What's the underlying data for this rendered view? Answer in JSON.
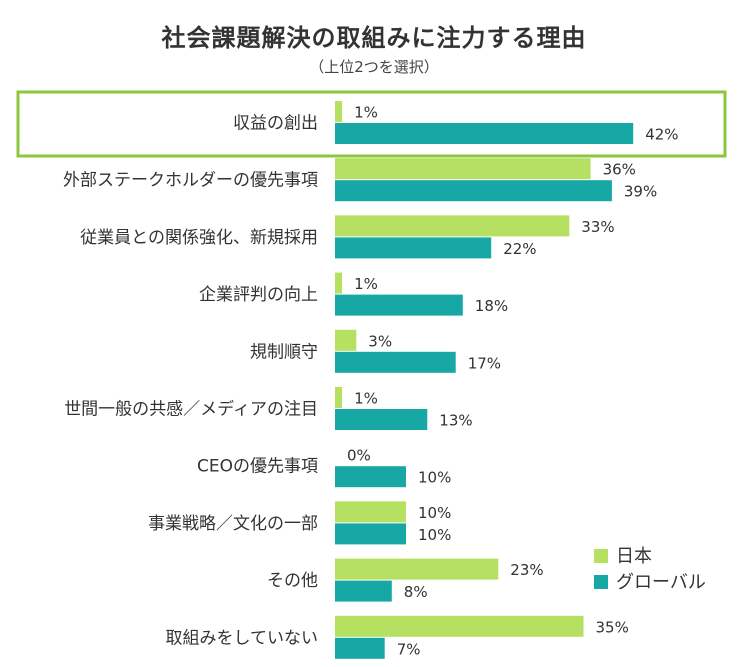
{
  "chart_data": {
    "type": "bar",
    "orientation": "horizontal",
    "title": "社会課題解決の取組みに注力する理由",
    "subtitle": "（上位2つを選択）",
    "xlabel": "",
    "ylabel": "",
    "xlim": [
      0,
      100
    ],
    "grid": false,
    "categories": [
      "収益の創出",
      "外部ステークホルダーの優先事項",
      "従業員との関係強化、新規採用",
      "企業評判の向上",
      "規制順守",
      "世間一般の共感／メディアの注目",
      "CEOの優先事項",
      "事業戦略／文化の一部",
      "その他",
      "取組みをしていない"
    ],
    "highlight_category": "収益の創出",
    "series": [
      {
        "name": "日本",
        "color": "#b5e061",
        "values": [
          1,
          36,
          33,
          1,
          3,
          1,
          0,
          10,
          23,
          35
        ]
      },
      {
        "name": "グローバル",
        "color": "#17a8a6",
        "values": [
          42,
          39,
          22,
          18,
          17,
          13,
          10,
          10,
          8,
          7
        ]
      }
    ],
    "value_suffix": "%",
    "legend_position": "right",
    "highlight_color": "#8cc63f"
  }
}
